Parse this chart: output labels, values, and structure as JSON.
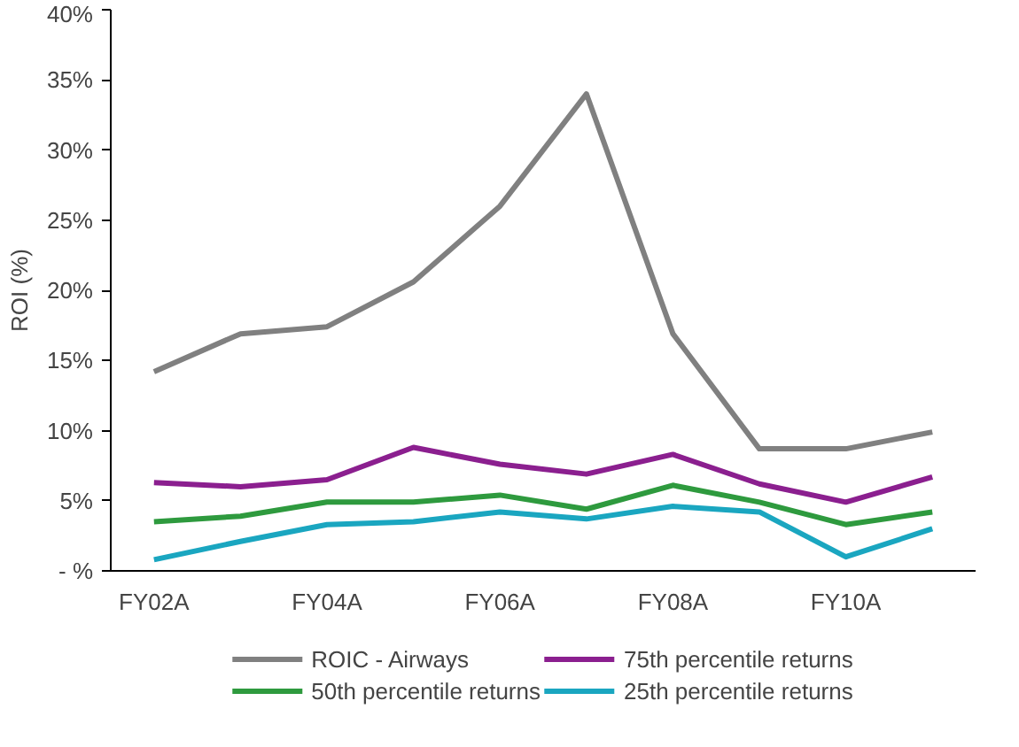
{
  "chart_data": {
    "type": "line",
    "ylabel": "ROI (%)",
    "categories": [
      "FY02A",
      null,
      "FY04A",
      null,
      "FY06A",
      null,
      "FY08A",
      null,
      "FY10A",
      null
    ],
    "ylim": [
      0,
      40
    ],
    "yticks": [
      {
        "value": 0,
        "label": "- %"
      },
      {
        "value": 5,
        "label": "5%"
      },
      {
        "value": 10,
        "label": "10%"
      },
      {
        "value": 15,
        "label": "15%"
      },
      {
        "value": 20,
        "label": "20%"
      },
      {
        "value": 25,
        "label": "25%"
      },
      {
        "value": 30,
        "label": "30%"
      },
      {
        "value": 35,
        "label": "35%"
      },
      {
        "value": 40,
        "label": "40%"
      }
    ],
    "grid": false,
    "legend": "bottom",
    "line_style": "solid",
    "series": [
      {
        "name": "ROIC - Airways",
        "color": "#808080",
        "values": [
          14.2,
          16.9,
          17.4,
          20.6,
          26.0,
          34.0,
          16.9,
          8.7,
          8.7,
          9.9
        ]
      },
      {
        "name": "75th percentile returns",
        "color": "#8b1f8f",
        "values": [
          6.3,
          6.0,
          6.5,
          8.8,
          7.6,
          6.9,
          8.3,
          6.2,
          4.9,
          6.7
        ]
      },
      {
        "name": "50th percentile returns",
        "color": "#2e9a3e",
        "values": [
          3.5,
          3.9,
          4.9,
          4.9,
          5.4,
          4.4,
          6.1,
          4.9,
          3.3,
          4.2
        ]
      },
      {
        "name": "25th percentile returns",
        "color": "#1aa6c0",
        "values": [
          0.8,
          2.1,
          3.3,
          3.5,
          4.2,
          3.7,
          4.6,
          4.2,
          1.0,
          3.0
        ]
      }
    ]
  }
}
